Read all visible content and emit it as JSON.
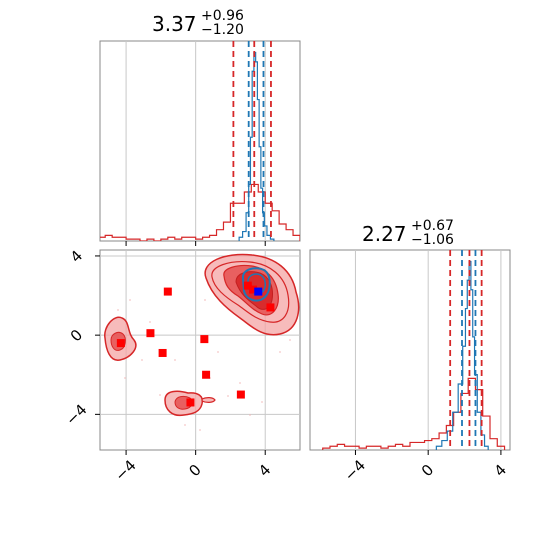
{
  "chart_data": [
    {
      "panel": "marginal-x",
      "type": "histogram",
      "title": {
        "value": "3.37",
        "plus": "+0.96",
        "minus": "−1.20"
      },
      "xlim": [
        -5.5,
        6
      ],
      "grid": true,
      "series": [
        {
          "color": "#d62728",
          "x": [
            -5.4,
            -5.0,
            -4.6,
            -4.2,
            -3.8,
            -3.4,
            -3.0,
            -2.6,
            -2.2,
            -1.8,
            -1.4,
            -1.0,
            -0.6,
            -0.2,
            0.2,
            0.6,
            1.0,
            1.4,
            1.8,
            2.2,
            2.6,
            3.0,
            3.4,
            3.8,
            4.2,
            4.6,
            5.0,
            5.4,
            5.8
          ],
          "density": [
            0.02,
            0.03,
            0.02,
            0.02,
            0.01,
            0.01,
            0.0,
            0.01,
            0.0,
            0.01,
            0.02,
            0.01,
            0.02,
            0.02,
            0.01,
            0.02,
            0.03,
            0.06,
            0.1,
            0.2,
            0.2,
            0.26,
            0.3,
            0.26,
            0.2,
            0.16,
            0.09,
            0.06,
            0.03
          ]
        },
        {
          "color": "#1f77b4",
          "x": [
            2.6,
            2.8,
            3.0,
            3.1,
            3.2,
            3.3,
            3.4,
            3.5,
            3.6,
            3.7,
            3.8,
            3.9,
            4.0,
            4.2,
            4.4
          ],
          "density": [
            0.02,
            0.05,
            0.15,
            0.3,
            0.55,
            0.9,
            1.0,
            0.95,
            0.75,
            0.5,
            0.28,
            0.15,
            0.08,
            0.03,
            0.01
          ]
        }
      ],
      "vlines": [
        {
          "x": 2.17,
          "color": "#d62728"
        },
        {
          "x": 3.05,
          "color": "#1f77b4"
        },
        {
          "x": 3.37,
          "color": "#d62728"
        },
        {
          "x": 3.9,
          "color": "#1f77b4"
        },
        {
          "x": 4.33,
          "color": "#d62728"
        }
      ]
    },
    {
      "panel": "joint",
      "type": "contour-scatter",
      "xlim": [
        -5.5,
        6
      ],
      "ylim": [
        -5.8,
        4.3
      ],
      "xticks": [
        "−4",
        "0",
        "4"
      ],
      "yticks": [
        "−4",
        "0",
        "4"
      ],
      "grid": true,
      "points_red": [
        {
          "x": -1.6,
          "y": 2.2
        },
        {
          "x": -2.6,
          "y": 0.1
        },
        {
          "x": -1.9,
          "y": -0.9
        },
        {
          "x": 0.5,
          "y": -0.2
        },
        {
          "x": -4.3,
          "y": -0.4
        },
        {
          "x": 0.6,
          "y": -2.0
        },
        {
          "x": -0.3,
          "y": -3.4
        },
        {
          "x": 2.6,
          "y": -3.0
        },
        {
          "x": 3.0,
          "y": 2.5
        },
        {
          "x": 4.3,
          "y": 1.4
        },
        {
          "x": 3.3,
          "y": 2.3
        }
      ],
      "point_blue": {
        "x": 3.6,
        "y": 2.2
      }
    },
    {
      "panel": "marginal-y",
      "type": "histogram",
      "title": {
        "value": "2.27",
        "plus": "+0.67",
        "minus": "−1.06"
      },
      "xlim": [
        -6.5,
        4.5
      ],
      "xticks": [
        "−4",
        "0",
        "4"
      ],
      "grid": true,
      "series": [
        {
          "color": "#d62728",
          "x": [
            -5.6,
            -5.2,
            -4.8,
            -4.4,
            -4.0,
            -3.6,
            -3.2,
            -2.8,
            -2.4,
            -2.0,
            -1.6,
            -1.2,
            -0.8,
            -0.4,
            0.0,
            0.4,
            0.8,
            1.2,
            1.6,
            2.0,
            2.4,
            2.8,
            3.2,
            3.6,
            4.0
          ],
          "density": [
            0.01,
            0.02,
            0.03,
            0.02,
            0.02,
            0.01,
            0.02,
            0.02,
            0.01,
            0.02,
            0.03,
            0.02,
            0.04,
            0.04,
            0.05,
            0.06,
            0.09,
            0.13,
            0.2,
            0.3,
            0.38,
            0.32,
            0.18,
            0.06,
            0.02
          ]
        },
        {
          "color": "#1f77b4",
          "x": [
            0.6,
            0.9,
            1.2,
            1.5,
            1.8,
            2.0,
            2.1,
            2.2,
            2.3,
            2.4,
            2.5,
            2.6,
            2.8,
            3.0,
            3.2
          ],
          "density": [
            0.02,
            0.05,
            0.1,
            0.2,
            0.35,
            0.55,
            0.75,
            0.9,
            1.0,
            0.85,
            0.6,
            0.4,
            0.2,
            0.08,
            0.02
          ]
        }
      ],
      "vlines": [
        {
          "x": 1.21,
          "color": "#d62728"
        },
        {
          "x": 1.86,
          "color": "#1f77b4"
        },
        {
          "x": 2.27,
          "color": "#d62728"
        },
        {
          "x": 2.6,
          "color": "#1f77b4"
        },
        {
          "x": 2.94,
          "color": "#d62728"
        }
      ]
    }
  ]
}
